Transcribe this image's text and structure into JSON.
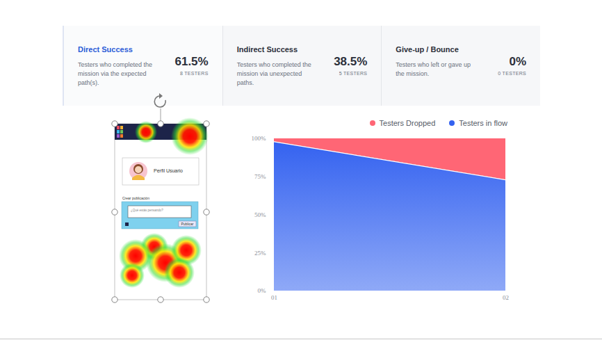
{
  "cards": [
    {
      "title": "Direct Success",
      "description": "Testers who completed the mission via the expected path(s).",
      "value": "61.5%",
      "testers": "8 TESTERS"
    },
    {
      "title": "Indirect Success",
      "description": "Testers who completed the mission via unexpected paths.",
      "value": "38.5%",
      "testers": "5 TESTERS"
    },
    {
      "title": "Give-up / Bounce",
      "description": "Testers who left or gave up the mission.",
      "value": "0%",
      "testers": "0 TESTERS"
    }
  ],
  "mockup": {
    "profile": "Perfil Usuario",
    "post_heading": "Crear publicación",
    "placeholder": "¿Qué estás pensando?",
    "button": "Publicar"
  },
  "chart_data": {
    "type": "area",
    "stacked": true,
    "categories": [
      "01",
      "02"
    ],
    "series": [
      {
        "name": "Testers in flow",
        "color": "#3462f0",
        "values": [
          98,
          73
        ]
      },
      {
        "name": "Testers Dropped",
        "color": "#ff6675",
        "values": [
          2,
          27
        ]
      }
    ],
    "ylim": [
      0,
      100
    ],
    "yticks": [
      {
        "value": 0,
        "label": "0%"
      },
      {
        "value": 25,
        "label": "25%"
      },
      {
        "value": 50,
        "label": "50%"
      },
      {
        "value": 75,
        "label": "75%"
      },
      {
        "value": 100,
        "label": "100%"
      }
    ],
    "grid": false,
    "legend": "top-right"
  }
}
